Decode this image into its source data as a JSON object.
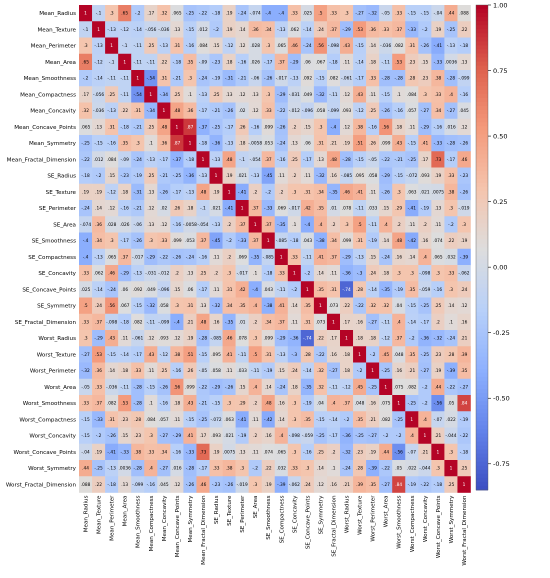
{
  "chart_data": {
    "type": "heatmap",
    "title": "",
    "variables": [
      "Mean_Radius",
      "Mean_Texture",
      "Mean_Perimeter",
      "Mean_Area",
      "Mean_Smoothness",
      "Mean_Compactness",
      "Mean_Concavity",
      "Mean_Concave_Points",
      "Mean_Symmetry",
      "Mean_Fractal_Dimension",
      "SE_Radius",
      "SE_Texture",
      "SE_Perimeter",
      "SE_Area",
      "SE_Smoothness",
      "SE_Compactness",
      "SE_Concavity",
      "SE_Concave_Points",
      "SE_Symmetry",
      "SE_Fractal_Dimension",
      "Worst_Radius",
      "Worst_Texture",
      "Worst_Perimeter",
      "Worst_Area",
      "Worst_Smoothness",
      "Worst_Compactness",
      "Worst_Concavity",
      "Worst_Concave_Points",
      "Worst_Symmetry",
      "Worst_Fractal_Dimension"
    ],
    "values": [
      [
        1,
        -0.1,
        0.3,
        0.65,
        -0.2,
        0.17,
        0.32,
        0.065,
        -0.25,
        -0.22,
        -0.18,
        0.19,
        -0.24,
        -0.074,
        -0.4,
        -0.4,
        0.33,
        0.025,
        0.5,
        0.33,
        0.3,
        -0.27,
        -0.32,
        -0.05,
        0.33,
        -0.15,
        -0.15,
        -0.04,
        0.44,
        0.088
      ],
      [
        -0.1,
        1,
        -0.13,
        -0.12,
        -0.14,
        -0.056,
        -0.036,
        0.13,
        -0.15,
        0.012,
        -0.2,
        0.19,
        0.14,
        0.36,
        0.34,
        -0.13,
        0.062,
        -0.14,
        0.24,
        0.37,
        -0.29,
        0.53,
        0.36,
        0.33,
        0.37,
        -0.33,
        -0.2,
        0.19,
        -0.25,
        0.22
      ],
      [
        0.3,
        -0.13,
        1,
        -0.1,
        -0.11,
        0.25,
        -0.13,
        0.31,
        -0.16,
        0.084,
        0.15,
        -0.12,
        0.12,
        0.028,
        0.3,
        0.065,
        0.46,
        -0.24,
        0.56,
        -0.098,
        0.43,
        -0.15,
        0.14,
        -0.036,
        0.082,
        0.31,
        -0.26,
        -0.41,
        -0.13,
        -0.18
      ],
      [
        0.65,
        -0.12,
        -0.1,
        1,
        -0.11,
        -0.11,
        0.22,
        -0.18,
        0.35,
        -0.09,
        -0.23,
        0.18,
        -0.16,
        0.026,
        -0.17,
        0.37,
        -0.29,
        0.06,
        0.067,
        -0.18,
        0.11,
        -0.14,
        0.18,
        -0.11,
        0.53,
        0.23,
        0.15,
        -0.33,
        0.0036,
        0.13
      ],
      [
        -0.2,
        -0.14,
        -0.11,
        -0.11,
        1,
        -0.54,
        0.31,
        -0.21,
        0.3,
        -0.24,
        -0.19,
        -0.31,
        -0.21,
        -0.06,
        -0.26,
        -0.017,
        -0.13,
        0.092,
        -0.15,
        0.082,
        -0.061,
        -0.17,
        0.33,
        -0.28,
        -0.28,
        0.28,
        0.23,
        0.38,
        -0.28,
        -0.099
      ],
      [
        0.17,
        -0.056,
        0.25,
        -0.11,
        -0.54,
        1,
        -0.34,
        0.25,
        0.1,
        -0.13,
        0.25,
        0.13,
        0.12,
        0.13,
        0.3,
        -0.29,
        -0.031,
        0.049,
        -0.32,
        -0.11,
        0.12,
        0.43,
        0.11,
        -0.15,
        0.1,
        0.084,
        0.3,
        0.33,
        0.4,
        -0.16
      ],
      [
        0.32,
        -0.036,
        -0.13,
        0.22,
        0.31,
        -0.34,
        1,
        0.48,
        0.36,
        -0.17,
        -0.21,
        -0.26,
        0.02,
        0.12,
        0.33,
        -0.22,
        -0.012,
        -0.096,
        0.058,
        -0.099,
        0.093,
        -0.12,
        0.25,
        -0.26,
        -0.16,
        0.057,
        -0.27,
        0.34,
        -0.27,
        0.045
      ],
      [
        0.065,
        0.13,
        0.31,
        -0.18,
        -0.21,
        0.25,
        0.48,
        1,
        0.87,
        -0.37,
        -0.25,
        -0.17,
        0.26,
        -0.16,
        0.099,
        -0.26,
        0.2,
        0.15,
        0.3,
        -0.4,
        0.12,
        0.38,
        -0.16,
        0.56,
        0.18,
        0.11,
        -0.29,
        -0.16,
        0.016,
        0.12
      ],
      [
        -0.25,
        -0.15,
        -0.16,
        0.35,
        0.3,
        0.1,
        0.36,
        0.87,
        1,
        -0.18,
        -0.36,
        -0.13,
        0.18,
        -0.0058,
        0.053,
        -0.24,
        0.13,
        0.06,
        0.31,
        0.21,
        0.19,
        0.51,
        0.26,
        0.099,
        0.43,
        -0.15,
        0.41,
        -0.33,
        -0.28,
        -0.26
      ],
      [
        -0.22,
        0.012,
        0.084,
        -0.09,
        -0.24,
        -0.13,
        -0.17,
        -0.37,
        -0.18,
        1,
        -0.13,
        0.48,
        -0.1,
        -0.054,
        0.37,
        -0.16,
        0.25,
        -0.17,
        0.13,
        0.48,
        -0.28,
        -0.15,
        -0.05,
        -0.22,
        -0.21,
        -0.25,
        0.17,
        0.73,
        -0.17,
        0.46
      ],
      [
        -0.18,
        -0.2,
        0.15,
        -0.23,
        -0.19,
        0.25,
        -0.21,
        -0.25,
        -0.36,
        -0.13,
        1,
        0.19,
        0.021,
        -0.13,
        -0.45,
        0.11,
        0.2,
        0.11,
        -0.32,
        0.16,
        -0.085,
        0.095,
        0.058,
        -0.29,
        -0.15,
        -0.072,
        0.093,
        0.19,
        0.33,
        -0.23
      ],
      [
        0.19,
        0.19,
        -0.12,
        0.18,
        -0.31,
        0.13,
        -0.26,
        -0.17,
        -0.13,
        0.48,
        0.19,
        1,
        -0.41,
        0.2,
        -0.2,
        0.2,
        0.3,
        0.31,
        0.34,
        -0.35,
        0.46,
        0.41,
        0.11,
        -0.26,
        0.3,
        0.063,
        0.021,
        0.0075,
        0.38,
        -0.26
      ],
      [
        -0.24,
        0.14,
        0.12,
        -0.16,
        -0.21,
        0.12,
        0.02,
        0.26,
        0.18,
        -0.1,
        0.021,
        -0.41,
        1,
        0.37,
        -0.33,
        0.069,
        -0.017,
        0.42,
        0.35,
        0.01,
        0.078,
        -0.11,
        0.033,
        0.15,
        0.29,
        -0.41,
        -0.19,
        0.13,
        0.3,
        -0.019
      ],
      [
        -0.074,
        0.36,
        0.028,
        0.026,
        -0.06,
        0.13,
        0.12,
        -0.16,
        -0.0058,
        -0.054,
        -0.13,
        0.2,
        0.37,
        1,
        0.37,
        -0.35,
        0.1,
        -0.4,
        0.4,
        0.2,
        0.3,
        0.5,
        -0.11,
        0.4,
        0.2,
        0.11,
        0.2,
        0.11,
        -0.2,
        0.3
      ],
      [
        -0.4,
        0.34,
        0.3,
        -0.17,
        -0.26,
        0.3,
        0.33,
        0.099,
        0.053,
        0.37,
        -0.45,
        -0.2,
        -0.33,
        0.37,
        1,
        -0.085,
        -0.18,
        0.043,
        -0.38,
        0.34,
        0.099,
        0.31,
        -0.19,
        0.14,
        0.48,
        -0.42,
        0.16,
        0.074,
        0.22,
        0.19
      ],
      [
        -0.4,
        -0.13,
        0.065,
        0.37,
        -0.017,
        -0.29,
        -0.22,
        -0.26,
        -0.24,
        -0.16,
        0.11,
        0.2,
        0.069,
        -0.35,
        -0.085,
        1,
        0.33,
        -0.11,
        0.41,
        0.37,
        -0.29,
        -0.13,
        0.15,
        -0.24,
        0.16,
        0.14,
        0.4,
        0.065,
        0.032,
        -0.39
      ],
      [
        0.33,
        0.062,
        0.46,
        -0.29,
        -0.13,
        -0.031,
        -0.012,
        0.2,
        0.13,
        0.25,
        0.2,
        0.3,
        -0.017,
        0.1,
        -0.18,
        0.33,
        1,
        -0.2,
        0.14,
        0.11,
        -0.36,
        -0.3,
        0.24,
        0.18,
        0.3,
        0.3,
        -0.098,
        0.3,
        0.33,
        -0.062
      ],
      [
        0.025,
        -0.14,
        -0.24,
        0.06,
        0.092,
        0.049,
        -0.096,
        0.15,
        0.06,
        -0.17,
        0.11,
        0.31,
        0.42,
        -0.4,
        0.043,
        -0.11,
        -0.2,
        1,
        0.35,
        0.31,
        -0.74,
        0.28,
        -0.14,
        -0.35,
        -0.19,
        0.35,
        -0.059,
        -0.16,
        0.3,
        0.24
      ],
      [
        0.5,
        0.24,
        0.56,
        0.067,
        -0.15,
        -0.32,
        0.058,
        0.3,
        0.31,
        0.13,
        -0.32,
        0.34,
        0.35,
        0.4,
        -0.38,
        0.41,
        0.14,
        0.35,
        1,
        0.073,
        0.22,
        -0.22,
        0.32,
        0.32,
        0.04,
        -0.15,
        -0.25,
        0.25,
        0.14,
        0.12
      ],
      [
        0.33,
        0.37,
        -0.098,
        -0.18,
        0.082,
        -0.11,
        -0.099,
        -0.4,
        0.21,
        0.48,
        0.16,
        -0.35,
        0.01,
        0.2,
        0.34,
        0.37,
        0.11,
        0.31,
        0.073,
        1,
        0.17,
        0.16,
        -0.27,
        -0.11,
        0.4,
        -0.14,
        -0.17,
        0.2,
        0.1,
        0.16
      ],
      [
        0.3,
        -0.29,
        0.43,
        0.11,
        -0.061,
        0.12,
        0.093,
        0.12,
        0.19,
        -0.28,
        -0.085,
        0.46,
        0.078,
        0.3,
        0.099,
        -0.29,
        -0.36,
        -0.74,
        0.22,
        0.17,
        1,
        0.18,
        0.18,
        -0.12,
        0.37,
        -0.2,
        -0.36,
        -0.32,
        -0.24,
        0.21
      ],
      [
        -0.27,
        0.53,
        -0.15,
        -0.14,
        -0.17,
        0.43,
        -0.12,
        0.38,
        0.51,
        -0.15,
        0.095,
        0.41,
        -0.11,
        0.5,
        0.31,
        -0.13,
        -0.3,
        0.28,
        -0.22,
        0.16,
        0.18,
        1,
        -0.2,
        0.45,
        0.048,
        0.35,
        -0.25,
        0.23,
        0.28,
        0.39
      ],
      [
        -0.32,
        0.36,
        0.14,
        0.18,
        0.33,
        0.11,
        0.25,
        -0.16,
        0.26,
        -0.05,
        0.058,
        0.11,
        0.033,
        -0.11,
        -0.19,
        0.15,
        0.24,
        -0.14,
        0.32,
        -0.27,
        0.18,
        -0.2,
        1,
        -0.25,
        0.16,
        0.21,
        -0.27,
        0.19,
        -0.39,
        0.35
      ],
      [
        -0.05,
        0.33,
        -0.036,
        -0.11,
        -0.28,
        -0.15,
        -0.26,
        0.56,
        0.099,
        -0.22,
        -0.29,
        -0.26,
        0.15,
        0.4,
        0.14,
        -0.24,
        0.18,
        -0.35,
        0.32,
        -0.11,
        -0.12,
        0.45,
        -0.25,
        1,
        0.075,
        0.082,
        -0.2,
        0.44,
        -0.22,
        -0.27
      ],
      [
        0.33,
        0.37,
        0.082,
        0.53,
        -0.28,
        0.1,
        -0.16,
        0.18,
        0.43,
        -0.21,
        -0.15,
        0.3,
        0.29,
        0.2,
        0.48,
        0.16,
        0.3,
        -0.19,
        0.04,
        0.4,
        0.37,
        0.048,
        0.16,
        0.075,
        1,
        -0.25,
        -0.2,
        -0.56,
        0.05,
        0.84
      ],
      [
        -0.15,
        -0.33,
        0.31,
        0.23,
        0.28,
        0.084,
        0.057,
        0.11,
        -0.15,
        -0.25,
        -0.072,
        0.063,
        -0.41,
        0.11,
        -0.42,
        0.14,
        0.3,
        0.35,
        -0.15,
        -0.14,
        -0.2,
        0.35,
        0.21,
        0.082,
        -0.25,
        1,
        0.4,
        -0.07,
        0.022,
        -0.19
      ],
      [
        -0.15,
        -0.2,
        -0.26,
        0.15,
        0.23,
        0.3,
        -0.27,
        -0.29,
        0.41,
        0.17,
        0.093,
        0.021,
        -0.19,
        0.2,
        0.16,
        0.4,
        -0.098,
        -0.059,
        -0.25,
        -0.17,
        -0.36,
        -0.25,
        -0.27,
        -0.2,
        -0.2,
        0.4,
        1,
        0.21,
        -0.044,
        -0.22
      ],
      [
        -0.04,
        0.19,
        -0.41,
        -0.33,
        0.38,
        0.33,
        0.34,
        -0.16,
        -0.33,
        0.73,
        0.19,
        0.0075,
        0.13,
        0.11,
        0.074,
        0.065,
        0.3,
        -0.16,
        0.25,
        0.2,
        -0.32,
        0.23,
        0.19,
        0.44,
        -0.56,
        -0.07,
        0.21,
        1,
        0.3,
        -0.18
      ],
      [
        0.44,
        -0.25,
        -0.13,
        0.0036,
        -0.28,
        0.4,
        -0.27,
        0.016,
        -0.28,
        -0.17,
        0.33,
        0.38,
        0.3,
        -0.2,
        0.22,
        0.032,
        0.33,
        0.3,
        0.14,
        0.1,
        -0.24,
        0.28,
        -0.39,
        -0.22,
        0.05,
        0.022,
        -0.044,
        0.3,
        1,
        0.25
      ],
      [
        0.088,
        0.22,
        -0.18,
        0.13,
        -0.099,
        -0.16,
        0.045,
        0.12,
        -0.26,
        0.46,
        -0.23,
        -0.26,
        -0.019,
        0.3,
        0.19,
        -0.39,
        -0.062,
        0.24,
        0.12,
        0.16,
        0.21,
        0.39,
        0.35,
        -0.27,
        0.84,
        -0.19,
        -0.22,
        -0.18,
        0.25,
        1
      ]
    ],
    "colormap": "coolwarm",
    "vmin": -0.85,
    "vmax": 1.0,
    "colorbar_ticks": [
      "1.00",
      "0.75",
      "0.50",
      "0.25",
      "0.00",
      "-0.25",
      "-0.50",
      "-0.75"
    ],
    "colorbar_tick_values": [
      1.0,
      0.75,
      0.5,
      0.25,
      0.0,
      -0.25,
      -0.5,
      -0.75
    ]
  }
}
